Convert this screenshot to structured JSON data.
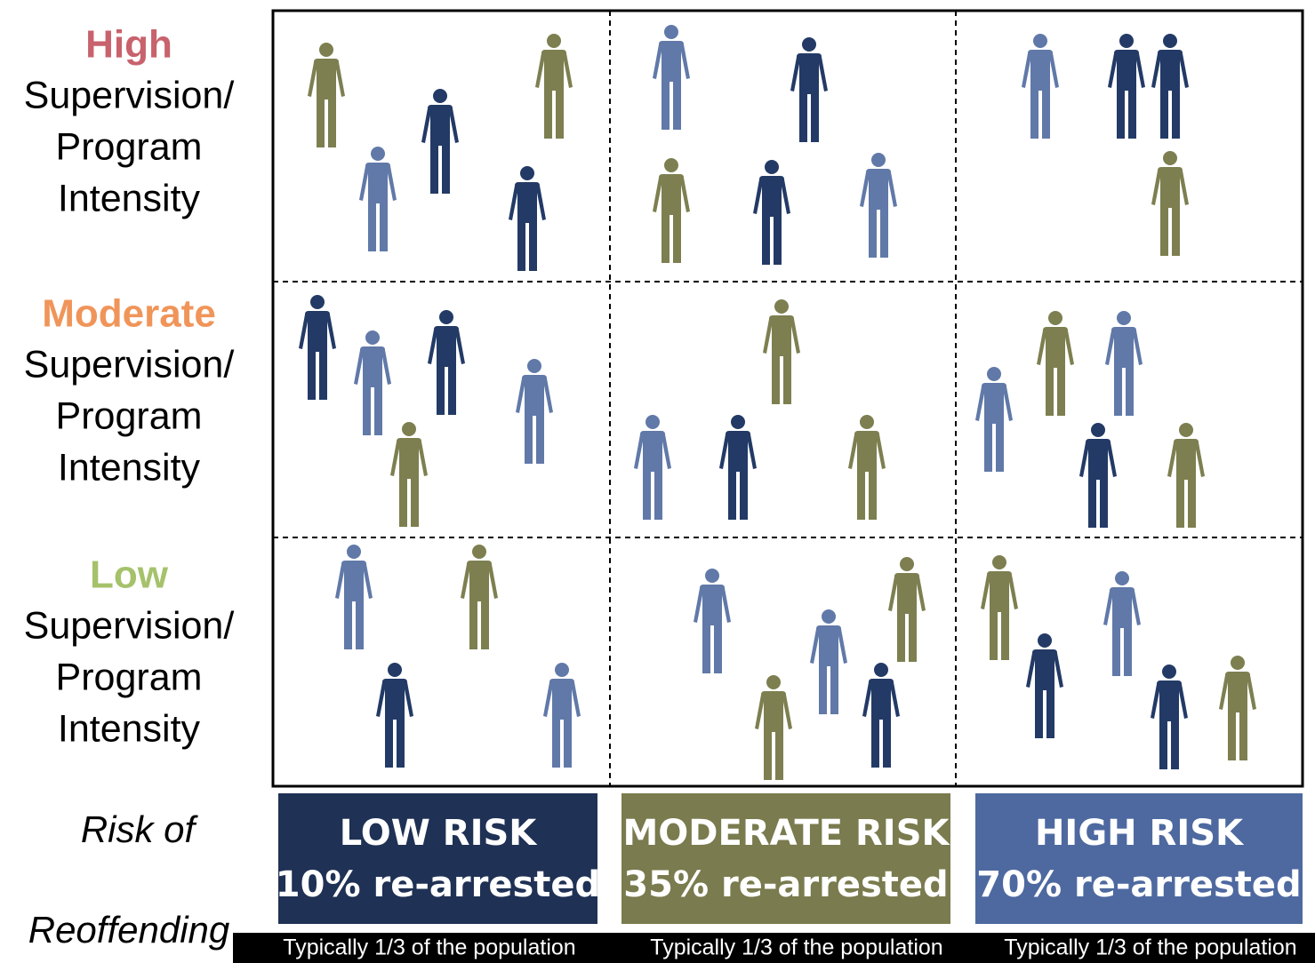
{
  "rows": [
    {
      "level": "High",
      "label": [
        "Supervision/",
        "Program",
        "Intensity"
      ]
    },
    {
      "level": "Moderate",
      "label": [
        "Supervision/",
        "Program",
        "Intensity"
      ]
    },
    {
      "level": "Low",
      "label": [
        "Supervision/",
        "Program",
        "Intensity"
      ]
    }
  ],
  "axis_label": [
    "Risk of",
    "Reoffending"
  ],
  "columns": [
    {
      "title": "LOW RISK",
      "rate": "10% re-arrested",
      "note": "Typically 1/3 of the population"
    },
    {
      "title": "MODERATE RISK",
      "rate": "35% re-arrested",
      "note": "Typically 1/3 of the population"
    },
    {
      "title": "HIGH RISK",
      "rate": "70% re-arrested",
      "note": "Typically 1/3 of the population"
    }
  ]
}
